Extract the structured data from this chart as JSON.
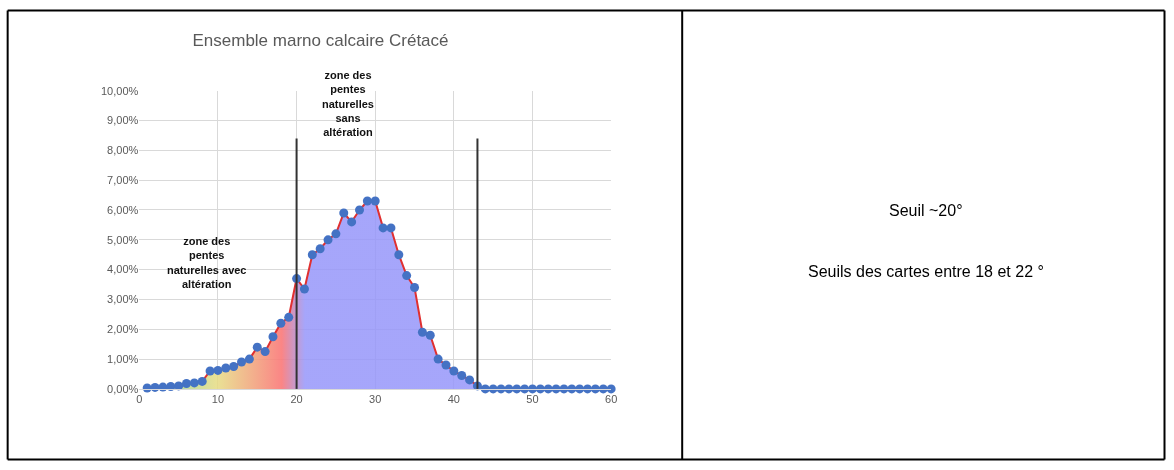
{
  "chart_data": {
    "type": "area",
    "title": "Ensemble marno calcaire Crétacé",
    "x": [
      1,
      2,
      3,
      4,
      5,
      6,
      7,
      8,
      9,
      10,
      11,
      12,
      13,
      14,
      15,
      16,
      17,
      18,
      19,
      20,
      21,
      22,
      23,
      24,
      25,
      26,
      27,
      28,
      29,
      30,
      31,
      32,
      33,
      34,
      35,
      36,
      37,
      38,
      39,
      40,
      41,
      42,
      43,
      44,
      45,
      46,
      47,
      48,
      49,
      50,
      51,
      52,
      53,
      54,
      55,
      56,
      57,
      58,
      59,
      60
    ],
    "series": [
      {
        "color": "#4472c4",
        "values": [
          0.03,
          0.05,
          0.06,
          0.08,
          0.1,
          0.18,
          0.2,
          0.25,
          0.6,
          0.62,
          0.7,
          0.75,
          0.9,
          1.0,
          1.4,
          1.25,
          1.75,
          2.2,
          2.4,
          3.7,
          3.35,
          4.5,
          4.7,
          5.0,
          5.2,
          5.9,
          5.6,
          6.0,
          6.3,
          6.3,
          5.4,
          5.4,
          4.5,
          3.8,
          3.4,
          1.9,
          1.8,
          1.0,
          0.8,
          0.6,
          0.45,
          0.3,
          0.1,
          0,
          0,
          0,
          0,
          0,
          0,
          0,
          0,
          0,
          0,
          0,
          0,
          0,
          0,
          0,
          0,
          0
        ]
      }
    ],
    "xlim": [
      0,
      60
    ],
    "xticks": [
      0,
      10,
      20,
      30,
      40,
      50,
      60
    ],
    "ylim": [
      0,
      10
    ],
    "yticks": [
      {
        "value": 0,
        "label": "0,00%"
      },
      {
        "value": 1,
        "label": "1,00%"
      },
      {
        "value": 2,
        "label": "2,00%"
      },
      {
        "value": 3,
        "label": "3,00%"
      },
      {
        "value": 4,
        "label": "4,00%"
      },
      {
        "value": 5,
        "label": "5,00%"
      },
      {
        "value": 6,
        "label": "6,00%"
      },
      {
        "value": 7,
        "label": "7,00%"
      },
      {
        "value": 8,
        "label": "8,00%"
      },
      {
        "value": 9,
        "label": "9,00%"
      },
      {
        "value": 10,
        "label": "10,00%"
      }
    ],
    "grid": true,
    "marker": "circle",
    "line_style": "solid",
    "ref_lines": [
      {
        "axis": "x",
        "value": 20,
        "color": "#333333"
      },
      {
        "axis": "x",
        "value": 43,
        "color": "#333333"
      }
    ],
    "annotations": [
      "zone des\npentes\nnaturelles avec\naltération",
      "zone des\npentes\nnaturelles\nsans\naltération",
      "Seuil ~20°",
      "Seuils des cartes entre 18 et 22 °"
    ]
  }
}
